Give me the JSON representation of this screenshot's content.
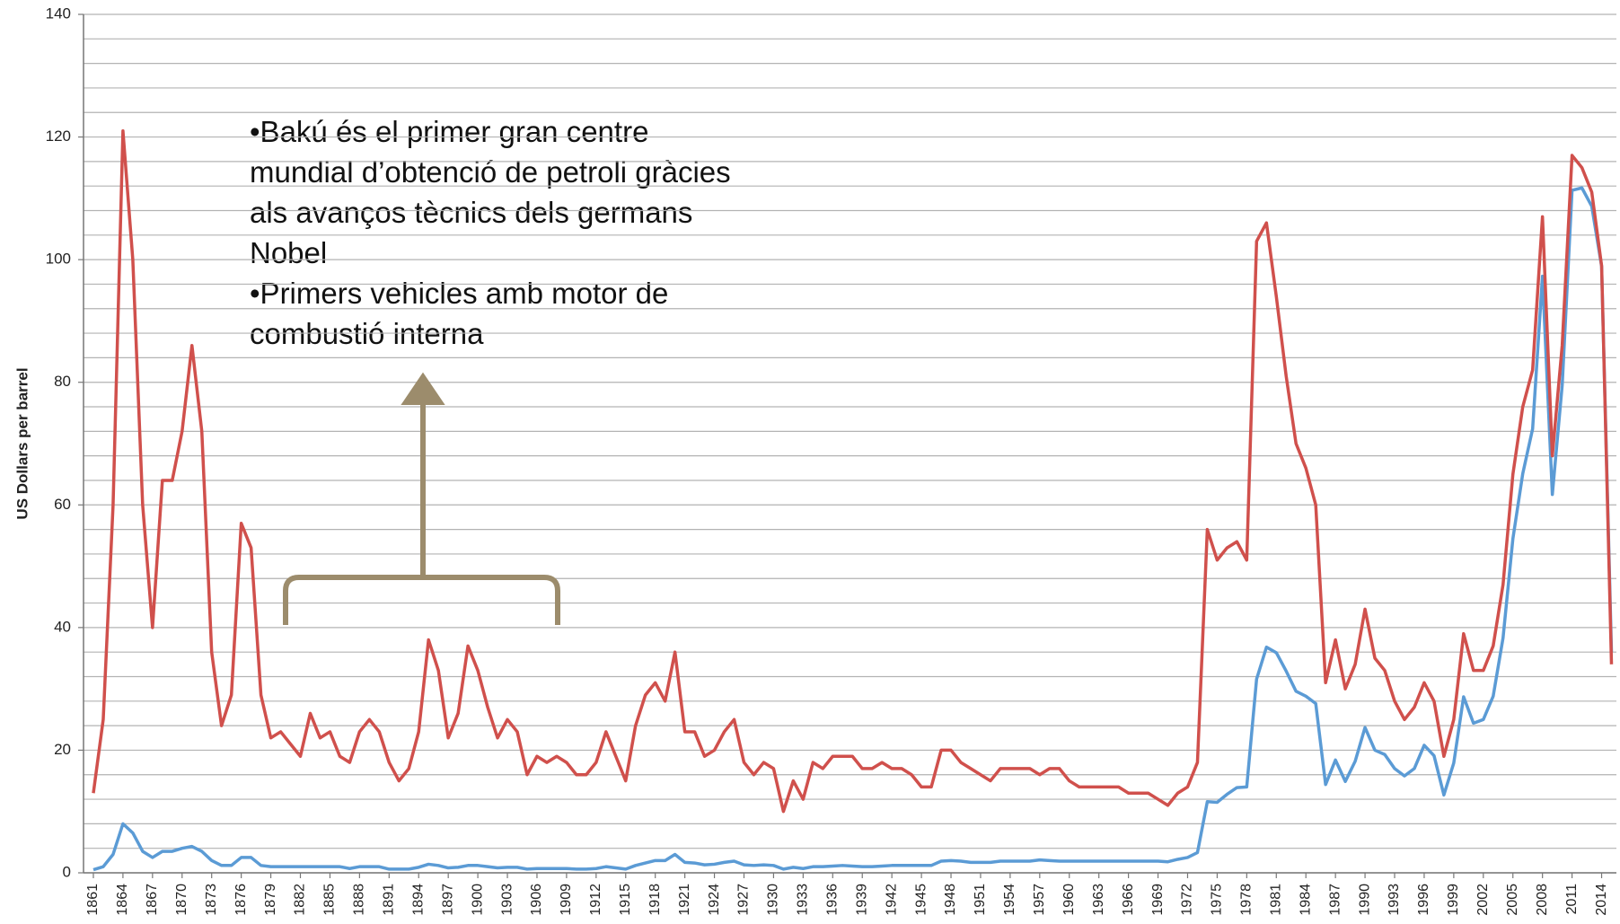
{
  "chart_data": {
    "type": "line",
    "ylabel": "US Dollars per barrel",
    "annotation": [
      "•Bakú és el primer gran centre",
      "mundial d’obtenció de petroli gràcies",
      "als avanços tècnics dels germans",
      "Nobel",
      "•Primers vehicles amb motor de",
      "combustió interna"
    ],
    "x": [
      1861,
      1862,
      1863,
      1864,
      1865,
      1866,
      1867,
      1868,
      1869,
      1870,
      1871,
      1872,
      1873,
      1874,
      1875,
      1876,
      1877,
      1878,
      1879,
      1880,
      1881,
      1882,
      1883,
      1884,
      1885,
      1886,
      1887,
      1888,
      1889,
      1890,
      1891,
      1892,
      1893,
      1894,
      1895,
      1896,
      1897,
      1898,
      1899,
      1900,
      1901,
      1902,
      1903,
      1904,
      1905,
      1906,
      1907,
      1908,
      1909,
      1910,
      1911,
      1912,
      1913,
      1914,
      1915,
      1916,
      1917,
      1918,
      1919,
      1920,
      1921,
      1922,
      1923,
      1924,
      1925,
      1926,
      1927,
      1928,
      1929,
      1930,
      1931,
      1932,
      1933,
      1934,
      1935,
      1936,
      1937,
      1938,
      1939,
      1940,
      1941,
      1942,
      1943,
      1944,
      1945,
      1946,
      1947,
      1948,
      1949,
      1950,
      1951,
      1952,
      1953,
      1954,
      1955,
      1956,
      1957,
      1958,
      1959,
      1960,
      1961,
      1962,
      1963,
      1964,
      1965,
      1966,
      1967,
      1968,
      1969,
      1970,
      1971,
      1972,
      1973,
      1974,
      1975,
      1976,
      1977,
      1978,
      1979,
      1980,
      1981,
      1982,
      1983,
      1984,
      1985,
      1986,
      1987,
      1988,
      1989,
      1990,
      1991,
      1992,
      1993,
      1994,
      1995,
      1996,
      1997,
      1998,
      1999,
      2000,
      2001,
      2002,
      2003,
      2004,
      2005,
      2006,
      2007,
      2008,
      2009,
      2010,
      2011,
      2012,
      2013,
      2014,
      2015
    ],
    "series": [
      {
        "color": "#5b9bd5",
        "values": [
          0.5,
          1,
          3,
          8,
          6.5,
          3.5,
          2.5,
          3.5,
          3.5,
          4,
          4.3,
          3.5,
          2,
          1.2,
          1.2,
          2.5,
          2.5,
          1.2,
          1,
          1,
          1,
          1,
          1,
          1,
          1,
          1,
          0.7,
          1,
          1,
          1,
          0.6,
          0.6,
          0.6,
          0.9,
          1.4,
          1.2,
          0.8,
          0.9,
          1.2,
          1.2,
          1,
          0.8,
          0.9,
          0.9,
          0.6,
          0.7,
          0.7,
          0.7,
          0.7,
          0.6,
          0.6,
          0.7,
          1,
          0.8,
          0.6,
          1.2,
          1.6,
          2,
          2,
          3,
          1.7,
          1.6,
          1.3,
          1.4,
          1.7,
          1.9,
          1.3,
          1.2,
          1.3,
          1.2,
          0.6,
          0.9,
          0.7,
          1,
          1,
          1.1,
          1.2,
          1.1,
          1,
          1,
          1.1,
          1.2,
          1.2,
          1.2,
          1.2,
          1.2,
          1.9,
          2,
          1.9,
          1.7,
          1.7,
          1.7,
          1.9,
          1.9,
          1.9,
          1.9,
          2.1,
          2,
          1.9,
          1.9,
          1.9,
          1.9,
          1.9,
          1.9,
          1.9,
          1.9,
          1.9,
          1.9,
          1.9,
          1.8,
          2.2,
          2.5,
          3.3,
          11.6,
          11.5,
          12.8,
          13.9,
          14,
          31.6,
          36.8,
          35.9,
          32.9,
          29.6,
          28.8,
          27.6,
          14.4,
          18.4,
          14.9,
          18.2,
          23.7,
          20,
          19.3,
          17,
          15.8,
          17,
          20.8,
          19.1,
          12.7,
          17.9,
          28.7,
          24.4,
          25,
          28.8,
          38.3,
          54.5,
          65.1,
          72.4,
          97.3,
          61.7,
          79.5,
          111.3,
          111.7,
          108.7,
          98.9,
          36
        ]
      },
      {
        "color": "#d0504c",
        "values": [
          13,
          25,
          60,
          121,
          100,
          60,
          40,
          64,
          64,
          72,
          86,
          72,
          36,
          24,
          29,
          57,
          53,
          29,
          22,
          23,
          21,
          19,
          26,
          22,
          23,
          19,
          18,
          23,
          25,
          23,
          18,
          15,
          17,
          23,
          38,
          33,
          22,
          26,
          37,
          33,
          27,
          22,
          25,
          23,
          16,
          19,
          18,
          19,
          18,
          16,
          16,
          18,
          23,
          19,
          15,
          24,
          29,
          31,
          28,
          36,
          23,
          23,
          19,
          20,
          23,
          25,
          18,
          16,
          18,
          17,
          10,
          15,
          12,
          18,
          17,
          19,
          19,
          19,
          17,
          17,
          18,
          17,
          17,
          16,
          14,
          14,
          20,
          20,
          18,
          17,
          16,
          15,
          17,
          17,
          17,
          17,
          16,
          17,
          17,
          15,
          14,
          14,
          14,
          14,
          14,
          13,
          13,
          13,
          12,
          11,
          13,
          14,
          18,
          56,
          51,
          53,
          54,
          51,
          103,
          106,
          94,
          81,
          70,
          66,
          60,
          31,
          38,
          30,
          34,
          43,
          35,
          33,
          28,
          25,
          27,
          31,
          28,
          19,
          25,
          39,
          33,
          33,
          37,
          47,
          65,
          76,
          82,
          107,
          68,
          86,
          117,
          115,
          111,
          99,
          34
        ]
      }
    ],
    "xlim": [
      1860,
      2015.5
    ],
    "xticks": [
      1861,
      1864,
      1867,
      1870,
      1873,
      1876,
      1879,
      1882,
      1885,
      1888,
      1891,
      1894,
      1897,
      1900,
      1903,
      1906,
      1909,
      1912,
      1915,
      1918,
      1921,
      1924,
      1927,
      1930,
      1933,
      1936,
      1939,
      1942,
      1945,
      1948,
      1951,
      1954,
      1957,
      1960,
      1963,
      1966,
      1969,
      1972,
      1975,
      1978,
      1981,
      1984,
      1987,
      1990,
      1993,
      1996,
      1999,
      2002,
      2005,
      2008,
      2011,
      2014
    ],
    "ylim": [
      0,
      140
    ],
    "yticks": [
      0,
      20,
      40,
      60,
      80,
      100,
      120,
      140
    ],
    "ygrid": [
      0,
      4,
      8,
      12,
      16,
      20,
      24,
      28,
      32,
      36,
      40,
      44,
      48,
      52,
      56,
      60,
      64,
      68,
      72,
      76,
      80,
      84,
      88,
      92,
      96,
      100,
      104,
      108,
      112,
      116,
      120,
      124,
      128,
      132,
      136,
      140
    ],
    "grid": true
  }
}
